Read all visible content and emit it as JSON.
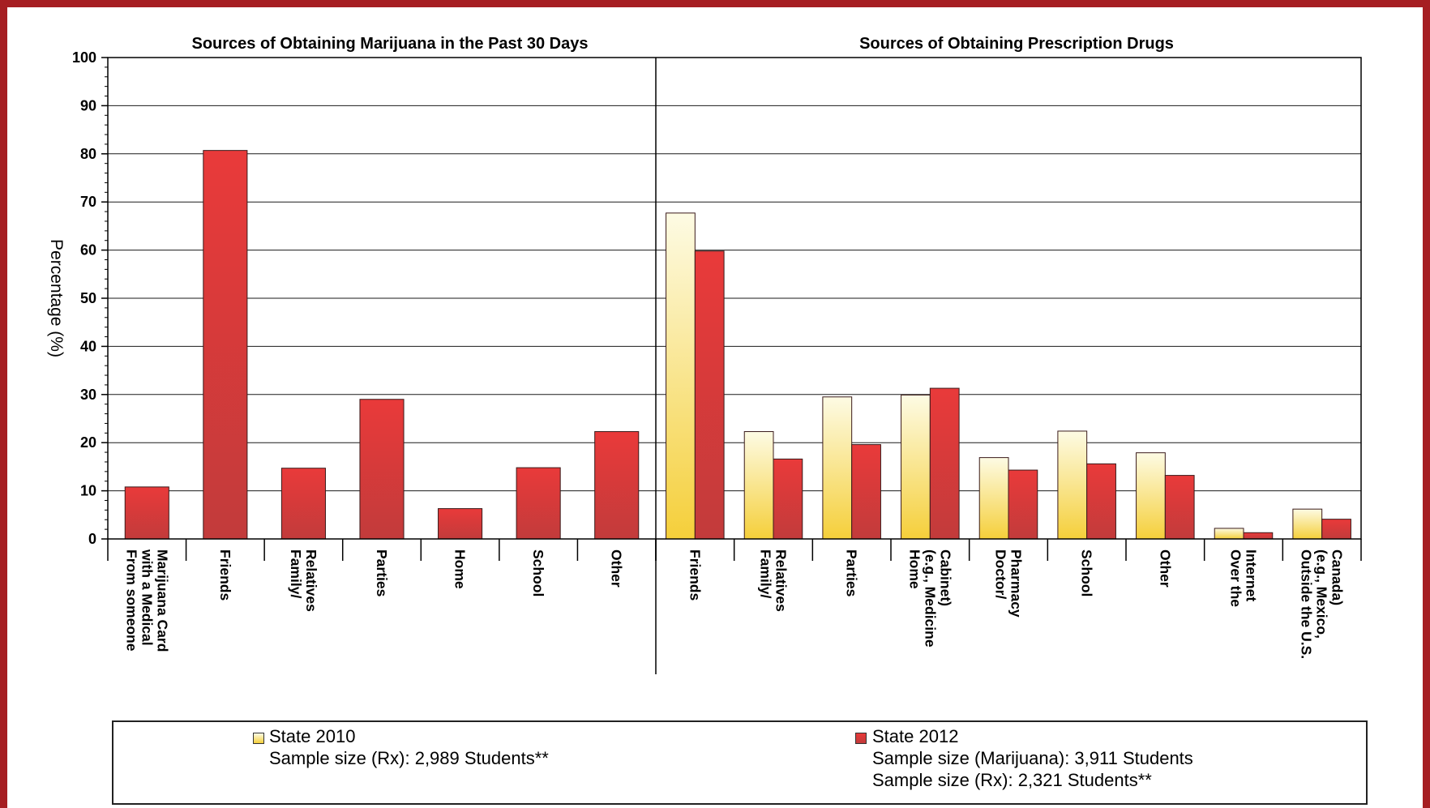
{
  "colors": {
    "frame": "#a61e22",
    "state2010_light": "#fdfbe4",
    "state2010_dark": "#f5cf3a",
    "state2012_light": "#e93a3a",
    "state2012_dark": "#c23b3b"
  },
  "chart_data": {
    "type": "bar",
    "ylabel": "Percentage (%)",
    "ylim": [
      0,
      100
    ],
    "yticks": [
      0,
      10,
      20,
      30,
      40,
      50,
      60,
      70,
      80,
      90,
      100
    ],
    "grid": true,
    "legend_position": "bottom",
    "panels": [
      {
        "title": "Sources of Obtaining Marijuana in the Past 30 Days",
        "categories": [
          "From someone with a Medical Marijuana Card",
          "Friends",
          "Family/ Relatives",
          "Parties",
          "Home",
          "School",
          "Other"
        ],
        "category_lines": [
          [
            "From someone",
            "with a Medical",
            "Marijuana Card"
          ],
          [
            "Friends"
          ],
          [
            "Family/",
            "Relatives"
          ],
          [
            "Parties"
          ],
          [
            "Home"
          ],
          [
            "School"
          ],
          [
            "Other"
          ]
        ],
        "series": [
          {
            "name": "State 2012",
            "values": [
              10.8,
              80.7,
              14.7,
              29.0,
              6.3,
              14.8,
              22.3
            ]
          }
        ]
      },
      {
        "title": "Sources of Obtaining Prescription Drugs",
        "categories": [
          "Friends",
          "Family/ Relatives",
          "Parties",
          "Home (e.g., Medicine Cabinet)",
          "Doctor/ Pharmacy",
          "School",
          "Other",
          "Over the Internet",
          "Outside the U.S. (e.g., Mexico, Canada)"
        ],
        "category_lines": [
          [
            "Friends"
          ],
          [
            "Family/",
            "Relatives"
          ],
          [
            "Parties"
          ],
          [
            "Home",
            "(e.g., Medicine",
            "Cabinet)"
          ],
          [
            "Doctor/",
            "Pharmacy"
          ],
          [
            "School"
          ],
          [
            "Other"
          ],
          [
            "Over the",
            "Internet"
          ],
          [
            "Outside the U.S.",
            "(e.g., Mexico,",
            "Canada)"
          ]
        ],
        "series": [
          {
            "name": "State 2010",
            "values": [
              67.7,
              22.3,
              29.5,
              29.9,
              16.9,
              22.4,
              17.9,
              2.2,
              6.2
            ]
          },
          {
            "name": "State 2012",
            "values": [
              59.8,
              16.6,
              19.6,
              31.3,
              14.3,
              15.6,
              13.2,
              1.3,
              4.1
            ]
          }
        ]
      }
    ]
  },
  "legend": {
    "state2010": {
      "label": "State 2010",
      "sample_rx": "Sample size (Rx): 2,989 Students**"
    },
    "state2012": {
      "label": "State 2012",
      "sample_marijuana": "Sample size (Marijuana): 3,911 Students",
      "sample_rx": "Sample size (Rx): 2,321 Students**"
    }
  }
}
